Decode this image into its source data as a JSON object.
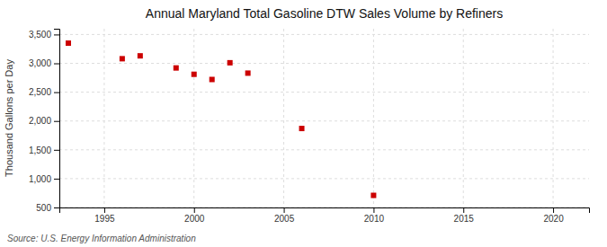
{
  "chart_data": {
    "type": "scatter",
    "title": "Annual Maryland Total Gasoline DTW Sales Volume by Refiners",
    "ylabel": "Thousand Gallons per Day",
    "source": "Source: U.S. Energy Information Administration",
    "x": [
      1993,
      1996,
      1997,
      1999,
      2000,
      2001,
      2002,
      2003,
      2006,
      2010
    ],
    "values": [
      3350,
      3080,
      3130,
      2920,
      2810,
      2720,
      3010,
      2830,
      1870,
      710
    ],
    "color": "#cc0000",
    "marker": "square",
    "xlim": [
      1992.5,
      2022
    ],
    "ylim": [
      500,
      3600
    ],
    "xticks": [
      1995,
      2000,
      2005,
      2010,
      2015,
      2020
    ],
    "yticks": [
      500,
      {
        "value": 1000,
        "label": "1,000"
      },
      {
        "value": 1500,
        "label": "1,500"
      },
      {
        "value": 2000,
        "label": "2,000"
      },
      {
        "value": 2500,
        "label": "2,500"
      },
      {
        "value": 3000,
        "label": "3,000"
      },
      {
        "value": 3500,
        "label": "3,500"
      }
    ],
    "grid": true
  }
}
